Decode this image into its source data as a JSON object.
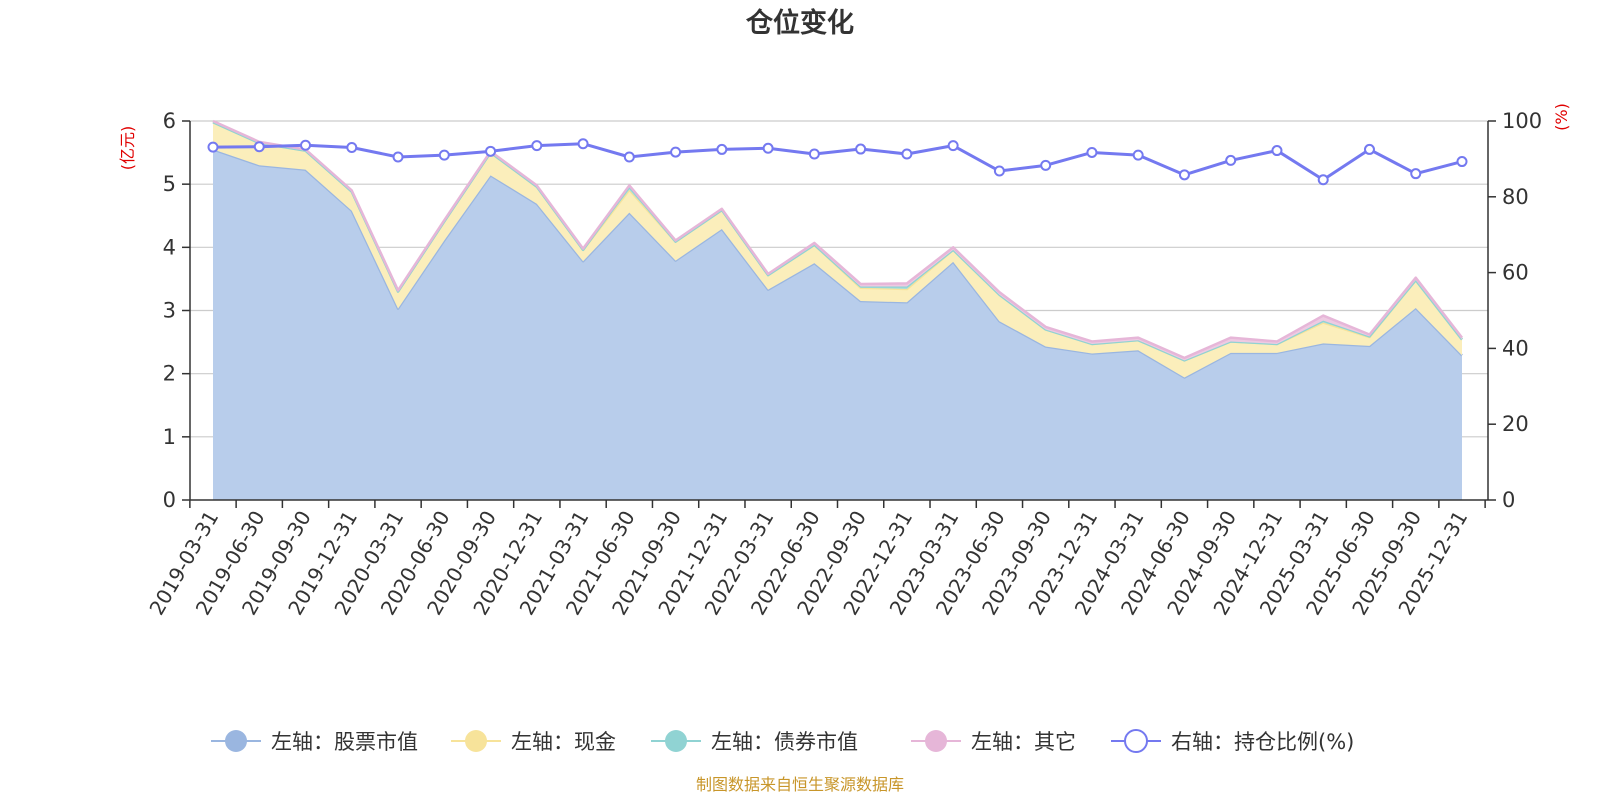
{
  "chart_data": {
    "type": "area",
    "title": "仓位变化",
    "left_axis_unit": "(亿元)",
    "right_axis_unit": "(%)",
    "left_ylim": [
      0,
      6
    ],
    "left_ticks": [
      "0",
      "1",
      "2",
      "3",
      "4",
      "5",
      "6"
    ],
    "right_ylim": [
      0,
      100
    ],
    "right_ticks": [
      "0",
      "20",
      "40",
      "60",
      "80",
      "100"
    ],
    "grid": true,
    "stacked": true,
    "legend_position": "bottom",
    "x": [
      "2019-03-31",
      "2019-06-30",
      "2019-09-30",
      "2019-12-31",
      "2020-03-31",
      "2020-06-30",
      "2020-09-30",
      "2020-12-31",
      "2021-03-31",
      "2021-06-30",
      "2021-09-30",
      "2021-12-31",
      "2022-03-31",
      "2022-06-30",
      "2022-09-30",
      "2022-12-31",
      "2023-03-31",
      "2023-06-30",
      "2023-09-30",
      "2023-12-31",
      "2024-03-31",
      "2024-06-30",
      "2024-09-30",
      "2024-12-31",
      "2025-03-31",
      "2025-06-30",
      "2025-09-30",
      "2025-12-31"
    ],
    "series": [
      {
        "name": "左轴：股票市值",
        "axis": "left",
        "color": "#9ab6e0",
        "fill": "#b8cdeb",
        "values": [
          5.55,
          5.3,
          5.23,
          4.58,
          3.03,
          4.11,
          5.14,
          4.69,
          3.78,
          4.55,
          3.79,
          4.29,
          3.33,
          3.75,
          3.15,
          3.13,
          3.77,
          2.83,
          2.43,
          2.32,
          2.37,
          1.94,
          2.33,
          2.33,
          2.48,
          2.44,
          3.04,
          2.29
        ]
      },
      {
        "name": "左轴：现金",
        "axis": "left",
        "color": "#f7e39a",
        "fill": "#fbeebb",
        "values": [
          0.43,
          0.35,
          0.3,
          0.3,
          0.27,
          0.3,
          0.36,
          0.27,
          0.18,
          0.36,
          0.3,
          0.3,
          0.23,
          0.29,
          0.21,
          0.21,
          0.19,
          0.42,
          0.27,
          0.15,
          0.16,
          0.27,
          0.18,
          0.14,
          0.33,
          0.14,
          0.44,
          0.25
        ]
      },
      {
        "name": "左轴：债券市值",
        "axis": "left",
        "color": "#90d3d3",
        "fill": "#a8dcdc",
        "values": [
          0,
          0,
          0,
          0,
          0,
          0,
          0,
          0,
          0,
          0.05,
          0,
          0,
          0,
          0,
          0.02,
          0.04,
          0,
          0,
          0,
          0,
          0,
          0,
          0,
          0,
          0.03,
          0.01,
          0,
          0
        ]
      },
      {
        "name": "左轴：其它",
        "axis": "left",
        "color": "#e6b6d8",
        "fill": "#eecae2",
        "values": [
          0.02,
          0.02,
          0.02,
          0.02,
          0.02,
          0.02,
          0.02,
          0.02,
          0.02,
          0.02,
          0.02,
          0.02,
          0.02,
          0.03,
          0.04,
          0.05,
          0.04,
          0.04,
          0.04,
          0.04,
          0.04,
          0.04,
          0.06,
          0.04,
          0.08,
          0.03,
          0.04,
          0.03
        ]
      },
      {
        "name": "右轴：持仓比例(%)",
        "axis": "right",
        "color": "#7479f0",
        "values": [
          93.1,
          93.2,
          93.6,
          93.0,
          90.5,
          91.0,
          92.0,
          93.5,
          94.0,
          90.5,
          91.8,
          92.5,
          92.8,
          91.3,
          92.6,
          91.3,
          93.5,
          86.8,
          88.3,
          91.7,
          91.0,
          85.8,
          89.6,
          92.2,
          84.5,
          92.5,
          86.1,
          89.3
        ]
      }
    ]
  },
  "source_text": "制图数据来自恒生聚源数据库"
}
